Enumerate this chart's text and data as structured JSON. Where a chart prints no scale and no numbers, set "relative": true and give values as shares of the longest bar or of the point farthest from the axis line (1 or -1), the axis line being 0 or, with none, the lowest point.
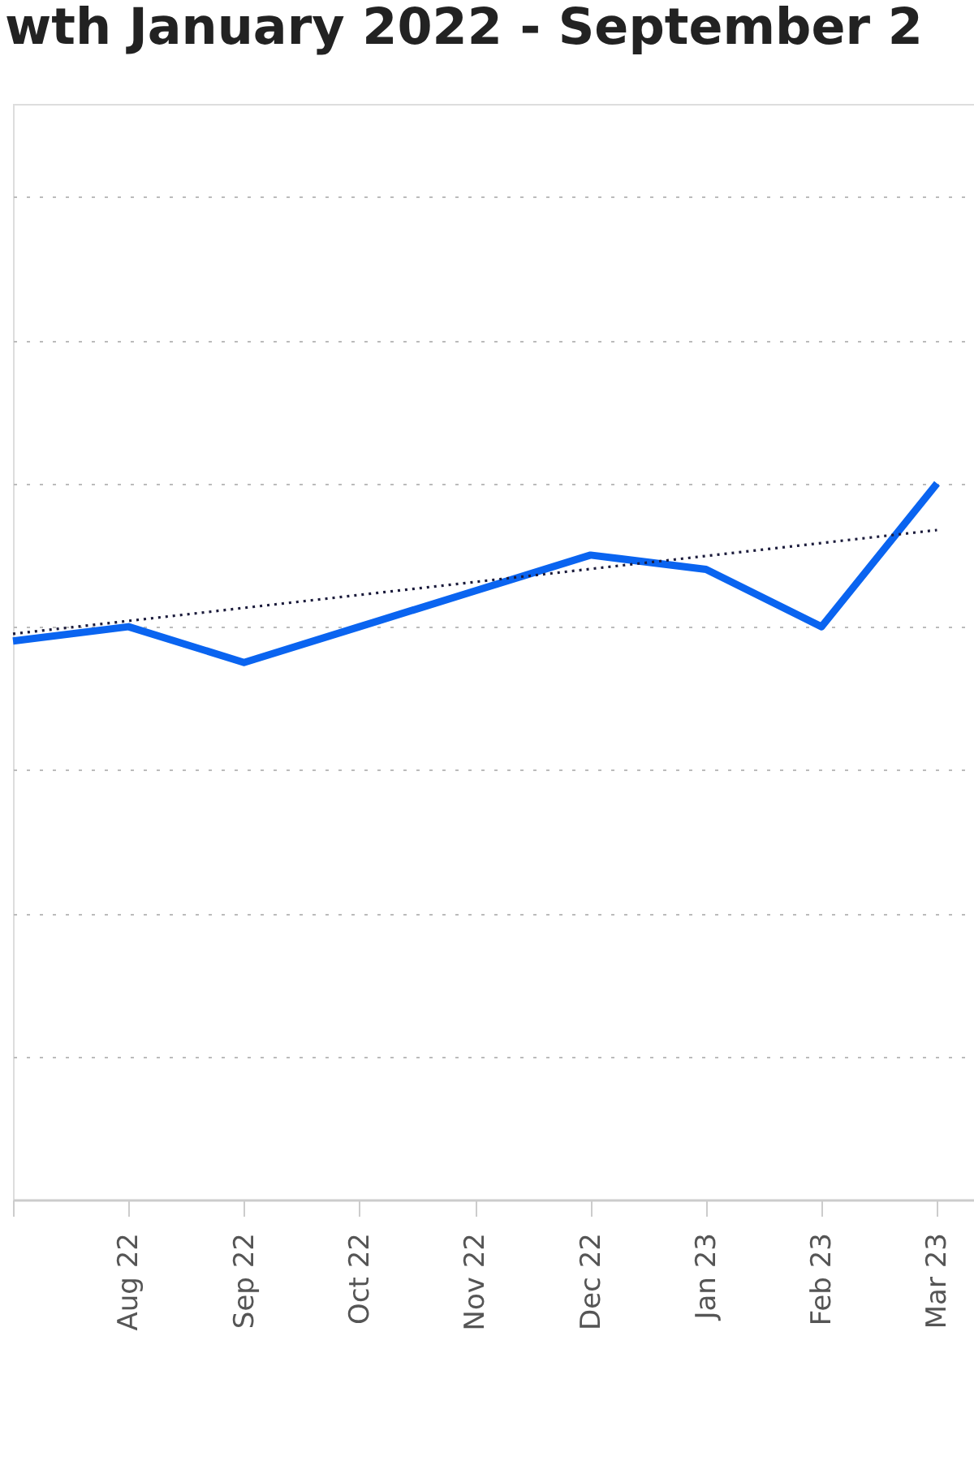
{
  "chart_data": {
    "type": "line",
    "title": "wth January 2022 - September 2",
    "relative": true,
    "grid": "y",
    "marker": "none",
    "categories": [
      null,
      "Aug 22",
      "Sep 22",
      "Oct 22",
      "Nov 22",
      "Dec 22",
      "Jan 23",
      "Feb 23",
      "Mar 23"
    ],
    "series": [
      {
        "color": "#0a64f0",
        "line_style": "solid",
        "values": [
          0.78,
          0.8,
          0.75,
          0.8,
          0.85,
          0.9,
          0.88,
          0.8,
          1.0
        ]
      },
      {
        "type": "line",
        "color": "#1c1c3c",
        "line_style": "dotted",
        "values": [
          0.79,
          null,
          null,
          null,
          null,
          null,
          null,
          null,
          0.935
        ]
      }
    ]
  }
}
